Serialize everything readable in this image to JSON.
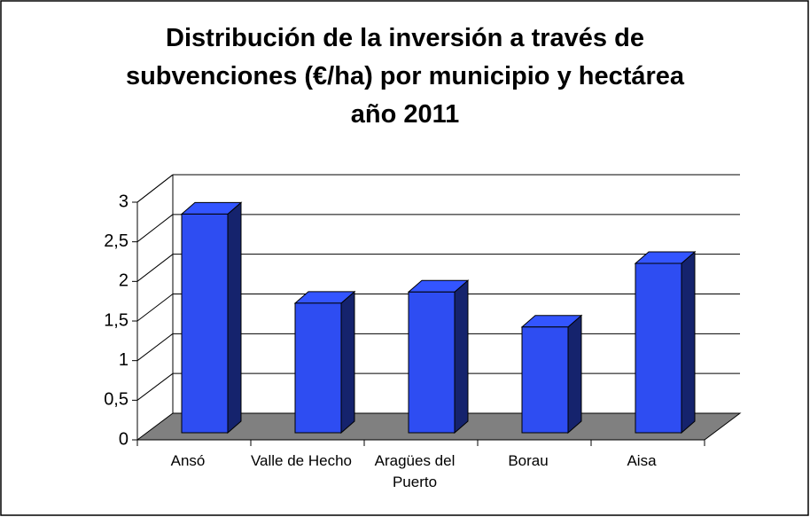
{
  "chart_data": {
    "type": "bar3d",
    "title": "Distribución de la inversión a través de subvenciones (€/ha) por municipio y hectárea año 2011",
    "categories": [
      "Ansó",
      "Valle de Hecho",
      "Aragües del Puerto",
      "Borau",
      "Aisa"
    ],
    "values": [
      2.75,
      1.63,
      1.77,
      1.33,
      2.13
    ],
    "color": "#2e4df2",
    "ylim": [
      0,
      3
    ],
    "yticks": [
      0,
      {
        "value": 0.5,
        "label": "0,5"
      },
      1,
      {
        "value": 1.5,
        "label": "1,5"
      },
      2,
      {
        "value": 2.5,
        "label": "2,5"
      },
      3
    ],
    "grid": true
  }
}
